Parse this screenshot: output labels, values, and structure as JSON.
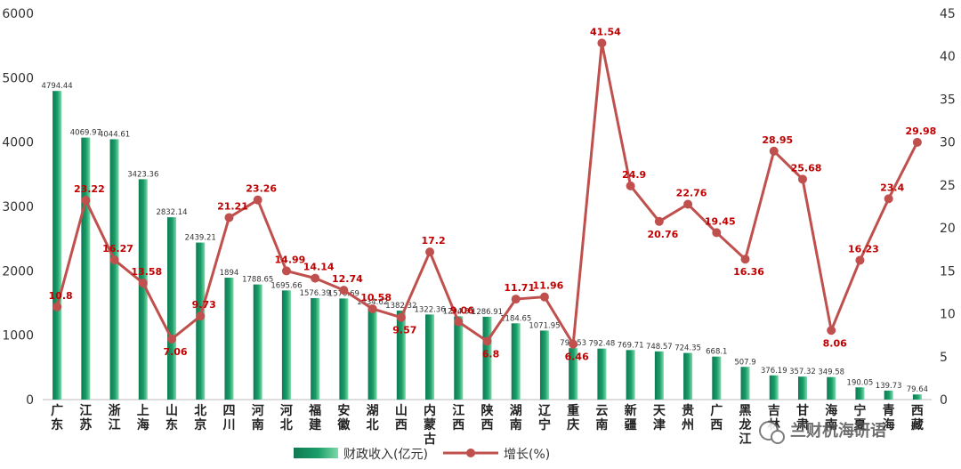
{
  "chart_data": {
    "type": "bar",
    "categories": [
      "广东",
      "江苏",
      "浙江",
      "上海",
      "山东",
      "北京",
      "四川",
      "河南",
      "河北",
      "福建",
      "安徽",
      "湖北",
      "山西",
      "内蒙古",
      "江西",
      "陕西",
      "湖南",
      "辽宁",
      "重庆",
      "云南",
      "新疆",
      "天津",
      "贵州",
      "广西",
      "黑龙江",
      "吉林",
      "甘肃",
      "海南",
      "宁夏",
      "青海",
      "西藏"
    ],
    "series": [
      {
        "name": "财政收入(亿元)",
        "type": "bar",
        "axis": "left",
        "color": "#1a9e6a",
        "values": [
          4794.44,
          4069.97,
          4044.61,
          3423.36,
          2832.14,
          2439.21,
          1894,
          1788.65,
          1695.66,
          1576.39,
          1570.69,
          1434.62,
          1382.32,
          1322.36,
          1294.31,
          1286.91,
          1184.65,
          1071.95,
          799.53,
          792.48,
          769.71,
          748.57,
          724.35,
          668.1,
          507.9,
          376.19,
          357.32,
          349.58,
          190.05,
          139.73,
          79.64
        ],
        "labels": [
          "4794.44",
          "4069.97",
          "4044.61",
          "3423.36",
          "2832.14",
          "2439.21",
          "1894",
          "1788.65",
          "1695.66",
          "1576.39",
          "1570.69",
          "1434.62",
          "1382.32",
          "1322.36",
          "1294.31",
          "1286.91",
          "1184.65",
          "1071.95",
          "799.53",
          "792.48",
          "769.71",
          "748.57",
          "724.35",
          "668.1",
          "507.9",
          "376.19",
          "357.32",
          "349.58",
          "190.05",
          "139.73",
          "79.64"
        ]
      },
      {
        "name": "增长(%)",
        "type": "line",
        "axis": "right",
        "color": "#c0504d",
        "values": [
          10.8,
          23.22,
          16.27,
          13.58,
          7.06,
          9.73,
          21.21,
          23.26,
          14.99,
          14.14,
          12.74,
          10.58,
          9.57,
          17.2,
          9.06,
          6.8,
          11.71,
          11.96,
          6.46,
          41.54,
          24.9,
          20.76,
          22.76,
          19.45,
          16.36,
          28.95,
          25.68,
          8.06,
          16.23,
          23.4,
          29.98
        ],
        "labels": [
          "10.8",
          "23.22",
          "16.27",
          "13.58",
          "7.06",
          "9.73",
          "21.21",
          "23.26",
          "14.99",
          "14.14",
          "12.74",
          "10.58",
          "9.57",
          "17.2",
          "9.06",
          "6.8",
          "11.71",
          "11.96",
          "6.46",
          "41.54",
          "24.9",
          "20.76",
          "22.76",
          "19.45",
          "16.36",
          "28.95",
          "25.68",
          "8.06",
          "16.23",
          "23.4",
          "29.98"
        ]
      }
    ],
    "y_left": {
      "min": 0,
      "max": 6000,
      "ticks": [
        "0",
        "1000",
        "2000",
        "3000",
        "4000",
        "5000",
        "6000"
      ]
    },
    "y_right": {
      "min": 0,
      "max": 45,
      "ticks": [
        "0",
        "5",
        "10",
        "15",
        "20",
        "25",
        "30",
        "35",
        "40",
        "45"
      ]
    },
    "grid": false,
    "legend_position": "bottom"
  },
  "watermark": {
    "text": "兰财杭海研语",
    "icon": "wechat-icon"
  }
}
